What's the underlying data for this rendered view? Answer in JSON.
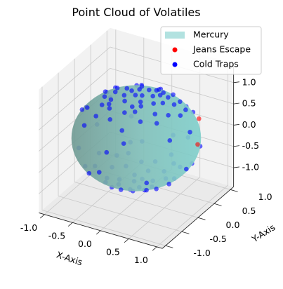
{
  "chart_data": {
    "type": "scatter",
    "projection": "3d",
    "title": "Point Cloud of Volatiles",
    "xlabel": "X-Axis",
    "ylabel": "Y-Axis",
    "zlabel": "",
    "xlim": [
      -1.1,
      1.1
    ],
    "ylim": [
      -1.1,
      1.1
    ],
    "zlim": [
      -1.45,
      1.45
    ],
    "grid": true,
    "legend_position": "upper-right",
    "x_ticks": [
      -1.0,
      -0.5,
      0.0,
      0.5,
      1.0
    ],
    "y_ticks": [
      -1.0,
      -0.5,
      0.0,
      0.5,
      1.0
    ],
    "z_ticks": [
      -1.0,
      -0.5,
      0.0,
      0.5,
      1.0
    ],
    "x_tick_labels": [
      "-1.0",
      "-0.5",
      "0.0",
      "0.5",
      "1.0"
    ],
    "y_tick_labels": [
      "-1.0",
      "-0.5",
      "0.0",
      "0.5",
      "1.0"
    ],
    "z_tick_labels": [
      "-1.0",
      "-0.5",
      "0.0",
      "0.5",
      "1.0"
    ],
    "surface": {
      "name": "Mercury",
      "shape": "sphere",
      "radius": 1.0,
      "center": [
        0,
        0,
        0
      ],
      "color": "#7fcfcb"
    },
    "series": [
      {
        "name": "Jeans Escape",
        "color": "#ff0000",
        "points": [
          [
            0.95,
            0.25,
            0.05
          ],
          [
            0.8,
            0.55,
            0.4
          ]
        ]
      },
      {
        "name": "Cold Traps",
        "color": "#0000ff",
        "cluster_model": "polar caps near z = +1 and z = -1",
        "points": [
          [
            0.14,
            -0.11,
            0.98
          ],
          [
            -0.08,
            0.24,
            0.96
          ],
          [
            0.21,
            0.15,
            0.97
          ],
          [
            -0.18,
            -0.06,
            0.98
          ],
          [
            0.05,
            0.31,
            0.95
          ],
          [
            0.32,
            -0.02,
            0.95
          ],
          [
            -0.27,
            0.18,
            0.95
          ],
          [
            0.09,
            -0.28,
            0.96
          ],
          [
            -0.02,
            0.01,
            1.0
          ],
          [
            0.26,
            0.29,
            0.92
          ],
          [
            -0.33,
            -0.21,
            0.92
          ],
          [
            0.18,
            -0.35,
            0.92
          ],
          [
            -0.12,
            0.38,
            0.92
          ],
          [
            0.41,
            0.11,
            0.91
          ],
          [
            -0.39,
            0.03,
            0.92
          ],
          [
            0.04,
            -0.43,
            0.9
          ],
          [
            0.23,
            0.44,
            0.87
          ],
          [
            -0.24,
            -0.41,
            0.88
          ],
          [
            0.45,
            -0.2,
            0.87
          ],
          [
            -0.47,
            0.23,
            0.85
          ],
          [
            0.11,
            0.51,
            0.85
          ],
          [
            0.52,
            0.27,
            0.81
          ],
          [
            -0.5,
            -0.11,
            0.86
          ],
          [
            0.34,
            -0.46,
            0.82
          ],
          [
            -0.21,
            0.53,
            0.82
          ],
          [
            0.6,
            -0.05,
            0.8
          ],
          [
            -0.58,
            0.36,
            0.73
          ],
          [
            0.3,
            0.62,
            0.73
          ],
          [
            -0.4,
            -0.55,
            0.73
          ],
          [
            0.65,
            0.4,
            0.65
          ],
          [
            -0.7,
            -0.3,
            0.65
          ],
          [
            0.15,
            -0.7,
            0.7
          ],
          [
            0.07,
            0.06,
            0.99
          ],
          [
            -0.15,
            0.12,
            0.98
          ],
          [
            0.2,
            -0.2,
            0.96
          ],
          [
            -0.3,
            -0.32,
            0.9
          ],
          [
            0.36,
            0.36,
            0.86
          ],
          [
            -0.09,
            -0.2,
            0.97
          ],
          [
            0.13,
            0.4,
            0.91
          ],
          [
            -0.42,
            -0.33,
            0.84
          ],
          [
            0.55,
            -0.32,
            0.77
          ],
          [
            -0.62,
            0.12,
            0.78
          ],
          [
            0.48,
            0.52,
            0.7
          ],
          [
            -0.12,
            -0.6,
            0.79
          ],
          [
            0.7,
            0.15,
            0.7
          ],
          [
            -0.35,
            0.62,
            0.7
          ],
          [
            0.02,
            0.72,
            0.69
          ],
          [
            -0.75,
            0.4,
            0.53
          ],
          [
            0.8,
            -0.35,
            0.48
          ],
          [
            -0.55,
            -0.65,
            0.52
          ],
          [
            0.25,
            -0.82,
            0.51
          ],
          [
            0.62,
            0.68,
            0.4
          ],
          [
            -0.85,
            -0.2,
            0.48
          ],
          [
            -0.78,
            0.55,
            0.3
          ],
          [
            0.9,
            0.1,
            0.42
          ],
          [
            0.4,
            0.85,
            0.34
          ],
          [
            -0.95,
            0.1,
            0.3
          ],
          [
            0.02,
            -0.95,
            0.3
          ],
          [
            -0.1,
            0.12,
            -0.98
          ],
          [
            0.17,
            -0.2,
            -0.96
          ],
          [
            -0.22,
            -0.14,
            -0.96
          ],
          [
            0.25,
            0.08,
            -0.96
          ],
          [
            0.04,
            0.3,
            -0.95
          ],
          [
            -0.31,
            0.22,
            -0.92
          ],
          [
            0.35,
            -0.12,
            -0.93
          ],
          [
            0.1,
            -0.36,
            -0.93
          ],
          [
            -0.02,
            -0.03,
            -1.0
          ],
          [
            -0.36,
            -0.28,
            -0.89
          ],
          [
            0.3,
            0.34,
            -0.89
          ],
          [
            -0.15,
            0.42,
            -0.89
          ],
          [
            0.44,
            0.15,
            -0.88
          ],
          [
            0.2,
            -0.45,
            -0.87
          ],
          [
            -0.46,
            0.05,
            -0.89
          ],
          [
            0.05,
            0.5,
            -0.86
          ],
          [
            -0.28,
            -0.46,
            -0.84
          ],
          [
            0.52,
            -0.28,
            -0.81
          ],
          [
            -0.52,
            0.3,
            -0.8
          ],
          [
            0.38,
            0.5,
            -0.78
          ],
          [
            -0.1,
            -0.58,
            -0.81
          ],
          [
            0.62,
            0.1,
            -0.78
          ],
          [
            -0.62,
            -0.2,
            -0.76
          ],
          [
            0.25,
            0.65,
            -0.72
          ],
          [
            -0.45,
            0.6,
            -0.66
          ],
          [
            0.5,
            -0.55,
            -0.67
          ],
          [
            0.06,
            0.08,
            -0.99
          ],
          [
            -0.14,
            -0.3,
            -0.94
          ],
          [
            0.32,
            -0.3,
            -0.9
          ],
          [
            -0.4,
            0.45,
            -0.8
          ],
          [
            0.55,
            0.4,
            -0.73
          ],
          [
            -0.65,
            -0.45,
            -0.61
          ],
          [
            0.12,
            -0.68,
            -0.72
          ],
          [
            0.7,
            -0.2,
            -0.68
          ],
          [
            -0.72,
            0.1,
            -0.69
          ],
          [
            -0.3,
            0.7,
            -0.65
          ],
          [
            0.82,
            0.3,
            -0.48
          ],
          [
            -0.88,
            -0.25,
            -0.4
          ],
          [
            0.15,
            0.88,
            -0.45
          ],
          [
            -0.35,
            -0.85,
            -0.4
          ],
          [
            0.6,
            -0.72,
            -0.35
          ],
          [
            -0.9,
            0.35,
            -0.25
          ],
          [
            0.95,
            -0.1,
            -0.3
          ],
          [
            -0.55,
            0.8,
            -0.22
          ],
          [
            0.45,
            0.82,
            -0.35
          ],
          [
            -0.1,
            -0.97,
            -0.2
          ],
          [
            0.88,
            0.45,
            -0.15
          ]
        ]
      }
    ]
  }
}
